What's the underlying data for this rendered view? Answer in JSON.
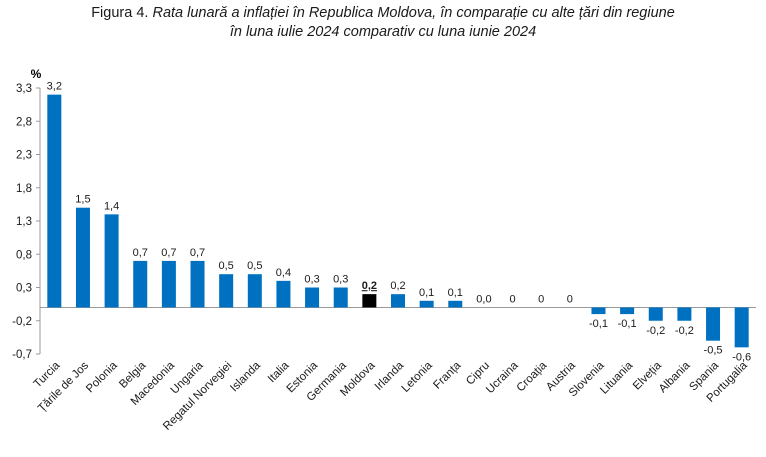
{
  "figure": {
    "prefix": "Figura 4.",
    "title_line1": "Rata lunară a inflației în Republica Moldova, în comparație cu alte țări din regiune",
    "title_line2": "în luna iulie 2024 comparativ cu luna iunie 2024"
  },
  "colors": {
    "bar": "#0070C0",
    "highlight_bar": "#000000",
    "axis": "#9a9a9a"
  },
  "chart_data": {
    "type": "bar",
    "title": "Rata lunară a inflației în Republica Moldova, în comparație cu alte țări din regiune în luna iulie 2024 comparativ cu luna iunie 2024",
    "ylabel": "%",
    "xlabel": "",
    "ylim": [
      -0.7,
      3.3
    ],
    "yticks": [
      -0.7,
      -0.2,
      0.3,
      0.8,
      1.3,
      1.8,
      2.3,
      2.8,
      3.3
    ],
    "ytick_labels": [
      "-0,7",
      "-0,2",
      "0,3",
      "0,8",
      "1,3",
      "1,8",
      "2,3",
      "2,8",
      "3,3"
    ],
    "grid": false,
    "legend": "none",
    "highlight": "Moldova",
    "categories": [
      "Turcia",
      "Țările de Jos",
      "Polonia",
      "Belgia",
      "Macedonia",
      "Ungaria",
      "Regatul Norvegiei",
      "Islanda",
      "Italia",
      "Estonia",
      "Germania",
      "Moldova",
      "Irlanda",
      "Letonia",
      "Franța",
      "Cipru",
      "Ucraina",
      "Croația",
      "Austria",
      "Slovenia",
      "Lituania",
      "Elveția",
      "Albania",
      "Spania",
      "Portugalia"
    ],
    "values": [
      3.2,
      1.5,
      1.4,
      0.7,
      0.7,
      0.7,
      0.5,
      0.5,
      0.4,
      0.3,
      0.3,
      0.2,
      0.2,
      0.1,
      0.1,
      0.0,
      0,
      0,
      0,
      -0.1,
      -0.1,
      -0.2,
      -0.2,
      -0.5,
      -0.6
    ],
    "value_labels": [
      "3,2",
      "1,5",
      "1,4",
      "0,7",
      "0,7",
      "0,7",
      "0,5",
      "0,5",
      "0,4",
      "0,3",
      "0,3",
      "0,2",
      "0,2",
      "0,1",
      "0,1",
      "0,0",
      "0",
      "0",
      "0",
      "-0,1",
      "-0,1",
      "-0,2",
      "-0,2",
      "-0,5",
      "-0,6"
    ]
  }
}
